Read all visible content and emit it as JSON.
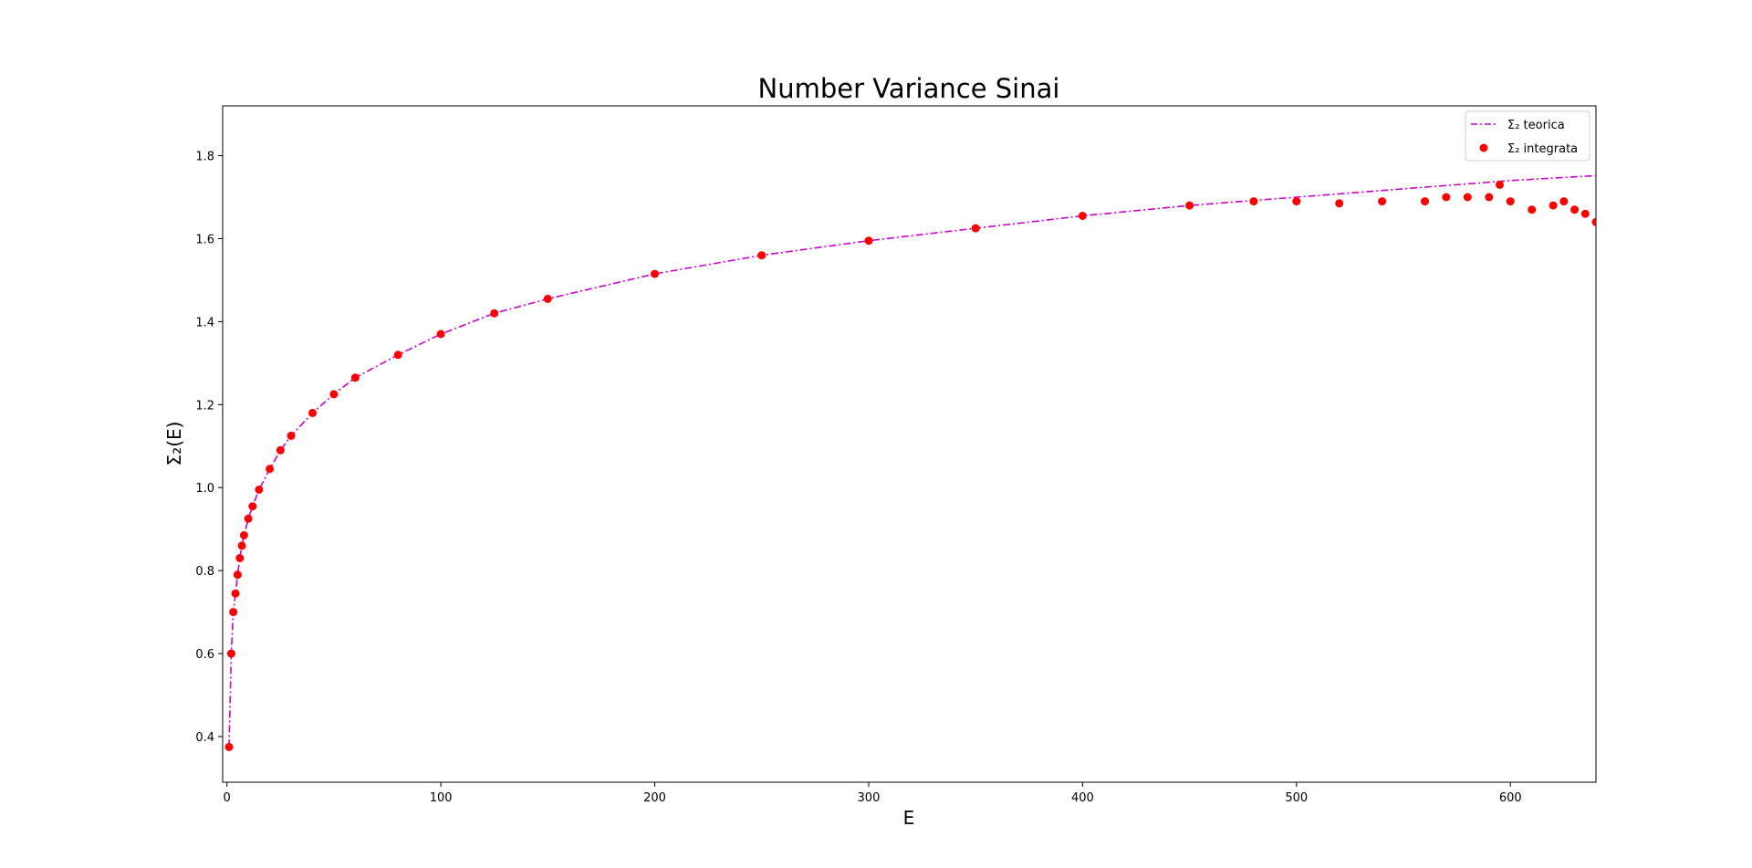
{
  "chart_data": {
    "type": "line",
    "title": "Number Variance Sinai",
    "xlabel": "E",
    "ylabel": "Σ₂(E)",
    "xlim": [
      -2,
      640
    ],
    "ylim": [
      0.29,
      1.92
    ],
    "xticks": [
      0,
      100,
      200,
      300,
      400,
      500,
      600
    ],
    "yticks": [
      0.4,
      0.6,
      0.8,
      1.0,
      1.2,
      1.4,
      1.6,
      1.8
    ],
    "xtick_labels": [
      "0",
      "100",
      "200",
      "300",
      "400",
      "500",
      "600"
    ],
    "ytick_labels": [
      "0.4",
      "0.6",
      "0.8",
      "1.0",
      "1.2",
      "1.4",
      "1.6",
      "1.8"
    ],
    "grid": false,
    "legend_position": "top-right",
    "series": [
      {
        "name": "Σ₂ teorica",
        "style": "dash-dot line",
        "color": "#cc00cc",
        "x": [
          1,
          2,
          3,
          4,
          5,
          6,
          7,
          8,
          10,
          12,
          15,
          20,
          25,
          30,
          40,
          50,
          60,
          80,
          100,
          125,
          150,
          200,
          250,
          300,
          350,
          400,
          450,
          500,
          550,
          600,
          640
        ],
        "y": [
          0.375,
          0.6,
          0.7,
          0.745,
          0.79,
          0.83,
          0.86,
          0.885,
          0.925,
          0.955,
          0.995,
          1.045,
          1.09,
          1.125,
          1.18,
          1.225,
          1.265,
          1.32,
          1.37,
          1.42,
          1.455,
          1.515,
          1.56,
          1.595,
          1.625,
          1.655,
          1.68,
          1.7,
          1.72,
          1.74,
          1.752
        ]
      },
      {
        "name": "Σ₂ integrata",
        "style": "scatter",
        "color": "#ff0000",
        "x": [
          1,
          2,
          3,
          4,
          5,
          6,
          7,
          8,
          10,
          12,
          15,
          20,
          25,
          30,
          40,
          50,
          60,
          80,
          100,
          125,
          150,
          200,
          250,
          300,
          350,
          400,
          450,
          480,
          500,
          520,
          540,
          560,
          570,
          580,
          590,
          595,
          600,
          610,
          620,
          625,
          630,
          635,
          640
        ],
        "y": [
          0.375,
          0.6,
          0.7,
          0.745,
          0.79,
          0.83,
          0.86,
          0.885,
          0.925,
          0.955,
          0.995,
          1.045,
          1.09,
          1.125,
          1.18,
          1.225,
          1.265,
          1.32,
          1.37,
          1.42,
          1.455,
          1.515,
          1.56,
          1.595,
          1.625,
          1.655,
          1.68,
          1.69,
          1.69,
          1.685,
          1.69,
          1.69,
          1.7,
          1.7,
          1.7,
          1.73,
          1.69,
          1.67,
          1.68,
          1.69,
          1.67,
          1.66,
          1.64
        ]
      }
    ]
  }
}
